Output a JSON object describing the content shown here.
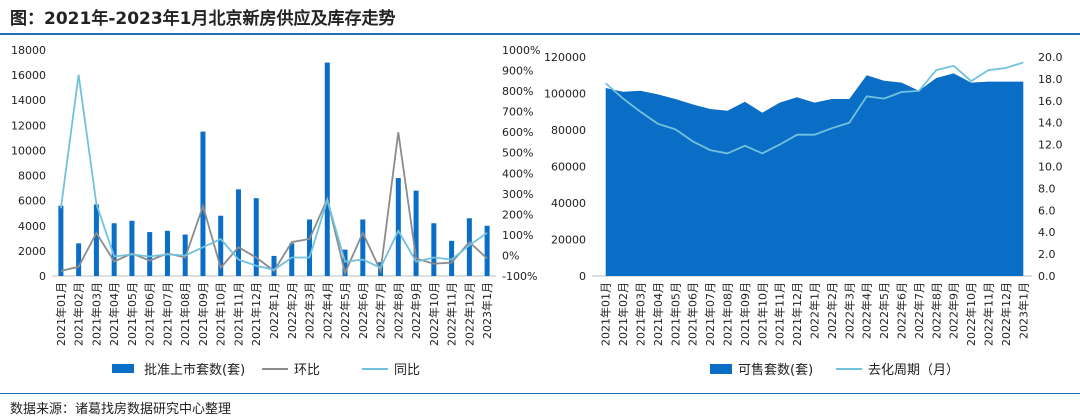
{
  "title": "图：2021年-2023年1月北京新房供应及库存走势",
  "source": "数据来源：诸葛找房数据研究中心整理",
  "categories": [
    "2021年01月",
    "2021年02月",
    "2021年03月",
    "2021年04月",
    "2021年05月",
    "2021年06月",
    "2021年07月",
    "2021年08月",
    "2021年09月",
    "2021年10月",
    "2021年11月",
    "2021年12月",
    "2022年1月",
    "2022年2月",
    "2022年3月",
    "2022年4月",
    "2022年5月",
    "2022年6月",
    "2022年7月",
    "2022年8月",
    "2022年9月",
    "2022年10月",
    "2022年11月",
    "2022年12月",
    "2023年1月"
  ],
  "chart_data": [
    {
      "type": "bar",
      "categories": [
        "2021年01月",
        "2021年02月",
        "2021年03月",
        "2021年04月",
        "2021年05月",
        "2021年06月",
        "2021年07月",
        "2021年08月",
        "2021年09月",
        "2021年10月",
        "2021年11月",
        "2021年12月",
        "2022年1月",
        "2022年2月",
        "2022年3月",
        "2022年4月",
        "2022年5月",
        "2022年6月",
        "2022年7月",
        "2022年8月",
        "2022年9月",
        "2022年10月",
        "2022年11月",
        "2022年12月",
        "2023年1月"
      ],
      "y_ticks": [
        "0",
        "2000",
        "4000",
        "6000",
        "8000",
        "10000",
        "12000",
        "14000",
        "16000",
        "18000"
      ],
      "y2_ticks": [
        "-100%",
        "0%",
        "100%",
        "200%",
        "300%",
        "400%",
        "500%",
        "600%",
        "700%",
        "800%",
        "900%",
        "1000%"
      ],
      "ylim": [
        0,
        18000
      ],
      "y2lim": [
        -100,
        1000
      ],
      "series": [
        {
          "name": "批准上市套数(套)",
          "type": "bar",
          "color": "#0a6ec6",
          "values": [
            5600,
            2600,
            5700,
            4200,
            4400,
            3500,
            3600,
            3300,
            11500,
            4800,
            6900,
            6200,
            1600,
            2600,
            4500,
            17000,
            2100,
            4500,
            1100,
            7800,
            6800,
            4200,
            2800,
            4600,
            4000
          ]
        },
        {
          "name": "环比",
          "type": "line",
          "axis": "right",
          "color": "#8c8c8c",
          "values": [
            -75,
            -55,
            110,
            -30,
            10,
            -25,
            10,
            -10,
            240,
            -60,
            40,
            -10,
            -75,
            65,
            80,
            275,
            -85,
            110,
            -75,
            600,
            -15,
            -40,
            -35,
            65,
            -15
          ]
        },
        {
          "name": "同比",
          "type": "line",
          "axis": "right",
          "color": "#72c2dc",
          "values": [
            230,
            880,
            250,
            -5,
            5,
            -5,
            5,
            0,
            40,
            80,
            -20,
            -50,
            -70,
            -10,
            -10,
            270,
            -30,
            -20,
            -60,
            120,
            -30,
            -10,
            -20,
            50,
            110
          ]
        }
      ]
    },
    {
      "type": "area",
      "categories": [
        "2021年01月",
        "2021年02月",
        "2021年03月",
        "2021年04月",
        "2021年05月",
        "2021年06月",
        "2021年07月",
        "2021年08月",
        "2021年09月",
        "2021年10月",
        "2021年11月",
        "2021年12月",
        "2022年1月",
        "2022年2月",
        "2022年3月",
        "2022年4月",
        "2022年5月",
        "2022年6月",
        "2022年7月",
        "2022年8月",
        "2022年9月",
        "2022年10月",
        "2022年11月",
        "2022年12月",
        "2023年1月"
      ],
      "y_ticks": [
        "0",
        "20000",
        "40000",
        "60000",
        "80000",
        "100000",
        "120000"
      ],
      "y2_ticks": [
        "0.0",
        "2.0",
        "4.0",
        "6.0",
        "8.0",
        "10.0",
        "12.0",
        "14.0",
        "16.0",
        "18.0",
        "20.0"
      ],
      "ylim": [
        0,
        120000
      ],
      "y2lim": [
        0,
        20
      ],
      "series": [
        {
          "name": "可售套数(套)",
          "type": "area",
          "color": "#0a6ec6",
          "values": [
            103000,
            101000,
            101500,
            99500,
            97000,
            94000,
            91500,
            90500,
            95500,
            89500,
            95000,
            98000,
            95000,
            97000,
            97000,
            110000,
            107000,
            106000,
            101500,
            108500,
            111000,
            106000,
            106500,
            106500,
            106500
          ]
        },
        {
          "name": "去化周期（月）",
          "type": "line",
          "axis": "right",
          "color": "#72c2dc",
          "values": [
            17.6,
            16.2,
            15.0,
            13.9,
            13.4,
            12.3,
            11.5,
            11.2,
            11.9,
            11.2,
            12.0,
            12.9,
            12.9,
            13.5,
            14.0,
            16.4,
            16.2,
            16.8,
            16.9,
            18.8,
            19.2,
            17.8,
            18.8,
            19.0,
            19.5
          ]
        }
      ]
    }
  ]
}
